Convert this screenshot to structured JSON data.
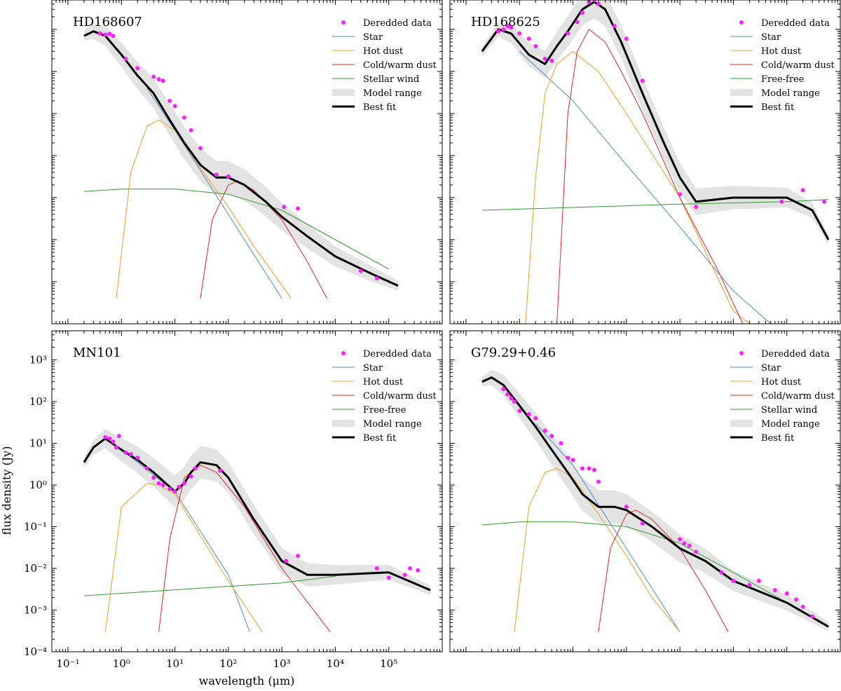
{
  "figure": {
    "ylabel": "flux density (Jy)",
    "xlabel": "wavelength (μm)"
  },
  "chart_data": [
    {
      "type": "line",
      "panel": "top-left",
      "title": "HD168607",
      "x_scale": "log",
      "y_scale": "log",
      "xlim": [
        0.05,
        1000000
      ],
      "ylim": [
        0.0001,
        5000
      ],
      "legend": [
        "Deredded data",
        "Star",
        "Hot dust",
        "Cold/warm dust",
        "Stellar wind",
        "Model range",
        "Best fit"
      ],
      "legend_placement": "top-right",
      "series": [
        {
          "name": "Best fit",
          "x": [
            0.2,
            0.3,
            0.5,
            1,
            2,
            4,
            8,
            15,
            30,
            60,
            100,
            200,
            500,
            1000,
            3000,
            10000,
            50000,
            150000
          ],
          "y": [
            700,
            900,
            700,
            250,
            80,
            30,
            7,
            2,
            0.6,
            0.3,
            0.3,
            0.2,
            0.08,
            0.035,
            0.012,
            0.004,
            0.0015,
            0.0008
          ]
        },
        {
          "name": "Star",
          "x": [
            3,
            10,
            100,
            1000
          ],
          "y": [
            40,
            4,
            0.04,
            0.0004
          ]
        },
        {
          "name": "Hot dust",
          "x": [
            0.8,
            1.5,
            3,
            5,
            10,
            30,
            100,
            300,
            1500
          ],
          "y": [
            0.0004,
            0.4,
            5,
            7,
            4,
            0.5,
            0.06,
            0.007,
            0.0004
          ]
        },
        {
          "name": "Cold/warm dust",
          "x": [
            30,
            50,
            100,
            150,
            300,
            1000,
            3000,
            7000
          ],
          "y": [
            0.0004,
            0.03,
            0.2,
            0.25,
            0.15,
            0.03,
            0.003,
            0.0004
          ]
        },
        {
          "name": "Stellar wind",
          "x": [
            0.2,
            1,
            10,
            100,
            1000,
            10000,
            100000
          ],
          "y": [
            0.14,
            0.16,
            0.16,
            0.12,
            0.05,
            0.01,
            0.002
          ]
        }
      ],
      "data_points": [
        [
          0.4,
          800
        ],
        [
          0.5,
          750
        ],
        [
          0.6,
          780
        ],
        [
          0.7,
          700
        ],
        [
          1.2,
          200
        ],
        [
          2,
          120
        ],
        [
          4,
          75
        ],
        [
          5,
          65
        ],
        [
          6,
          60
        ],
        [
          8,
          20
        ],
        [
          10,
          15
        ],
        [
          15,
          8
        ],
        [
          20,
          4
        ],
        [
          30,
          1.5
        ],
        [
          60,
          0.35
        ],
        [
          100,
          0.32
        ],
        [
          1100,
          0.06
        ],
        [
          2000,
          0.055
        ],
        [
          30000,
          0.0018
        ],
        [
          60000,
          0.0012
        ]
      ]
    },
    {
      "type": "line",
      "panel": "top-right",
      "title": "HD168625",
      "x_scale": "log",
      "y_scale": "log",
      "xlim": [
        0.05,
        1000000
      ],
      "ylim": [
        0.0001,
        5000
      ],
      "legend": [
        "Deredded data",
        "Star",
        "Hot dust",
        "Cold/warm dust",
        "Free-free",
        "Model range",
        "Best fit"
      ],
      "legend_placement": "top-right",
      "series": [
        {
          "name": "Best fit",
          "x": [
            0.2,
            0.4,
            0.7,
            1.5,
            3,
            5,
            8,
            15,
            25,
            40,
            80,
            200,
            500,
            1000,
            2000,
            10000,
            100000,
            300000,
            600000
          ],
          "y": [
            300,
            1000,
            800,
            250,
            150,
            400,
            900,
            3000,
            4500,
            3000,
            500,
            30,
            2,
            0.3,
            0.08,
            0.1,
            0.1,
            0.05,
            0.01
          ]
        },
        {
          "name": "Star",
          "x": [
            1,
            10,
            100,
            1000,
            10000,
            50000
          ],
          "y": [
            300,
            20,
            0.6,
            0.02,
            0.0006,
            0.0001
          ]
        },
        {
          "name": "Hot dust",
          "x": [
            1.3,
            2,
            3,
            5,
            10,
            30,
            100,
            1000,
            10000,
            20000
          ],
          "y": [
            0.0001,
            0.3,
            30,
            150,
            300,
            100,
            10,
            0.1,
            0.0002,
            0.0001
          ]
        },
        {
          "name": "Cold/warm dust",
          "x": [
            5,
            8,
            12,
            20,
            40,
            80,
            200,
            1000,
            5000,
            15000
          ],
          "y": [
            0.0001,
            10,
            300,
            1000,
            500,
            100,
            10,
            0.1,
            0.002,
            0.0001
          ]
        },
        {
          "name": "Free-free",
          "x": [
            0.2,
            1000,
            100000,
            600000
          ],
          "y": [
            0.05,
            0.07,
            0.08,
            0.09
          ]
        }
      ],
      "data_points": [
        [
          0.4,
          900
        ],
        [
          0.5,
          1000
        ],
        [
          0.6,
          1200
        ],
        [
          0.7,
          1100
        ],
        [
          1,
          800
        ],
        [
          1.5,
          600
        ],
        [
          2,
          400
        ],
        [
          3,
          200
        ],
        [
          4,
          180
        ],
        [
          8,
          800
        ],
        [
          12,
          1500
        ],
        [
          15,
          2500
        ],
        [
          20,
          4500
        ],
        [
          25,
          5000
        ],
        [
          30,
          4000
        ],
        [
          60,
          1200
        ],
        [
          100,
          600
        ],
        [
          200,
          60
        ],
        [
          1000,
          0.12
        ],
        [
          2000,
          0.06
        ],
        [
          80000,
          0.08
        ],
        [
          200000,
          0.15
        ],
        [
          500000,
          0.08
        ]
      ]
    },
    {
      "type": "line",
      "panel": "bottom-left",
      "title": "MN101",
      "x_scale": "log",
      "y_scale": "log",
      "xlim": [
        0.05,
        1000000
      ],
      "ylim": [
        0.0001,
        5000
      ],
      "xticks": [
        "10⁻¹",
        "10⁰",
        "10¹",
        "10²",
        "10³",
        "10⁴",
        "10⁵"
      ],
      "yticks": [
        "10⁻⁴",
        "10⁻³",
        "10⁻²",
        "10⁻¹",
        "10⁰",
        "10¹",
        "10²",
        "10³"
      ],
      "legend": [
        "Deredded data",
        "Star",
        "Hot dust",
        "Cold/warm dust",
        "Free-free",
        "Model range",
        "Best fit"
      ],
      "legend_placement": "top-right",
      "series": [
        {
          "name": "Best fit",
          "x": [
            0.2,
            0.3,
            0.5,
            1,
            2,
            4,
            8,
            10,
            15,
            20,
            30,
            60,
            100,
            300,
            1000,
            3000,
            10000,
            100000,
            600000
          ],
          "y": [
            3.5,
            8,
            13,
            7,
            4,
            2,
            0.9,
            0.7,
            1.1,
            2,
            3.5,
            3,
            1.5,
            0.15,
            0.015,
            0.007,
            0.007,
            0.008,
            0.003
          ]
        },
        {
          "name": "Star",
          "x": [
            1,
            10,
            100,
            250
          ],
          "y": [
            7,
            0.7,
            0.007,
            0.0003
          ]
        },
        {
          "name": "Hot dust",
          "x": [
            0.5,
            1,
            3,
            5,
            10,
            30,
            100,
            430
          ],
          "y": [
            0.0003,
            0.3,
            1.1,
            1,
            0.6,
            0.06,
            0.005,
            0.0003
          ]
        },
        {
          "name": "Cold/warm dust",
          "x": [
            5,
            8,
            15,
            30,
            60,
            200,
            1000,
            8000
          ],
          "y": [
            0.0003,
            0.05,
            1.5,
            3,
            2,
            0.3,
            0.01,
            0.0003
          ]
        },
        {
          "name": "Free-free",
          "x": [
            0.2,
            1000,
            10000
          ],
          "y": [
            0.0022,
            0.0045,
            0.0065
          ]
        }
      ],
      "data_points": [
        [
          0.5,
          14
        ],
        [
          0.6,
          13
        ],
        [
          0.7,
          11
        ],
        [
          0.8,
          8
        ],
        [
          0.9,
          15
        ],
        [
          1.2,
          6
        ],
        [
          1.5,
          5.5
        ],
        [
          2,
          4.5
        ],
        [
          3,
          2.5
        ],
        [
          4,
          1.5
        ],
        [
          5,
          1.1
        ],
        [
          6,
          1
        ],
        [
          8,
          0.8
        ],
        [
          10,
          0.7
        ],
        [
          12,
          0.9
        ],
        [
          15,
          1.1
        ],
        [
          20,
          1.6
        ],
        [
          24,
          2.5
        ],
        [
          70,
          2.2
        ],
        [
          1200,
          0.015
        ],
        [
          2000,
          0.02
        ],
        [
          60000,
          0.01
        ],
        [
          100000,
          0.006
        ],
        [
          200000,
          0.007
        ],
        [
          250000,
          0.01
        ],
        [
          350000,
          0.009
        ]
      ]
    },
    {
      "type": "line",
      "panel": "bottom-right",
      "title": "G79.29+0.46",
      "x_scale": "log",
      "y_scale": "log",
      "xlim": [
        0.05,
        1000000
      ],
      "ylim": [
        0.0001,
        5000
      ],
      "legend": [
        "Deredded data",
        "Star",
        "Hot dust",
        "Cold/warm dust",
        "Stellar wind",
        "Model range",
        "Best fit"
      ],
      "legend_placement": "top-right",
      "series": [
        {
          "name": "Best fit",
          "x": [
            0.2,
            0.3,
            0.5,
            1,
            2,
            4,
            8,
            15,
            30,
            60,
            100,
            300,
            1000,
            3000,
            10000,
            100000,
            600000
          ],
          "y": [
            300,
            380,
            250,
            80,
            25,
            7,
            2,
            0.6,
            0.3,
            0.3,
            0.25,
            0.1,
            0.03,
            0.015,
            0.005,
            0.0015,
            0.0004
          ]
        },
        {
          "name": "Star",
          "x": [
            2,
            10,
            100,
            1000
          ],
          "y": [
            30,
            3,
            0.03,
            0.0003
          ]
        },
        {
          "name": "Hot dust",
          "x": [
            0.8,
            1.5,
            3,
            5,
            10,
            30,
            100,
            300,
            1000
          ],
          "y": [
            0.0003,
            0.3,
            2,
            2.5,
            1.5,
            0.2,
            0.02,
            0.002,
            0.0003
          ]
        },
        {
          "name": "Cold/warm dust",
          "x": [
            30,
            50,
            100,
            150,
            300,
            1000,
            3000,
            8000
          ],
          "y": [
            0.0003,
            0.03,
            0.2,
            0.25,
            0.15,
            0.03,
            0.003,
            0.0003
          ]
        },
        {
          "name": "Stellar wind",
          "x": [
            0.2,
            1,
            10,
            100,
            1000,
            10000,
            100000
          ],
          "y": [
            0.11,
            0.13,
            0.13,
            0.1,
            0.04,
            0.008,
            0.0015
          ]
        }
      ],
      "data_points": [
        [
          0.5,
          200
        ],
        [
          0.6,
          150
        ],
        [
          0.7,
          120
        ],
        [
          0.8,
          100
        ],
        [
          1,
          60
        ],
        [
          1.5,
          50
        ],
        [
          2,
          40
        ],
        [
          3,
          20
        ],
        [
          4,
          15
        ],
        [
          6,
          10
        ],
        [
          8,
          4.5
        ],
        [
          10,
          4
        ],
        [
          15,
          2.5
        ],
        [
          20,
          2.5
        ],
        [
          25,
          2.3
        ],
        [
          30,
          1.2
        ],
        [
          100,
          0.3
        ],
        [
          200,
          0.12
        ],
        [
          1000,
          0.05
        ],
        [
          1200,
          0.04
        ],
        [
          1500,
          0.035
        ],
        [
          2000,
          0.025
        ],
        [
          6000,
          0.008
        ],
        [
          10000,
          0.005
        ],
        [
          20000,
          0.004
        ],
        [
          30000,
          0.005
        ],
        [
          60000,
          0.003
        ],
        [
          100000,
          0.0025
        ],
        [
          150000,
          0.0018
        ],
        [
          200000,
          0.0012
        ],
        [
          300000,
          0.0007
        ]
      ]
    }
  ]
}
